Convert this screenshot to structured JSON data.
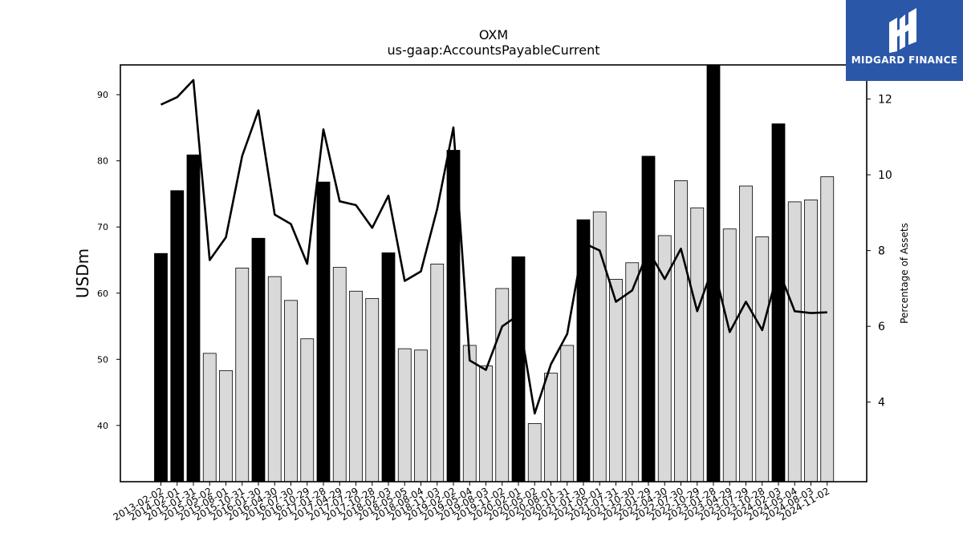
{
  "chart_data": {
    "type": "bar",
    "title": "OXM",
    "subtitle": "us-gaap:AccountsPayableCurrent",
    "ylabel": "USDm",
    "y2label": "Percentage of Assets",
    "ylim": [
      31.5,
      94.5
    ],
    "y2lim": [
      1.9,
      12.9
    ],
    "yticks": [
      40,
      50,
      60,
      70,
      80,
      90
    ],
    "y2ticks": [
      4,
      6,
      8,
      10,
      12
    ],
    "categories": [
      "2013-02-02",
      "2014-02-01",
      "2015-01-31",
      "2015-05-02",
      "2015-08-01",
      "2015-10-31",
      "2016-01-30",
      "2016-04-30",
      "2016-07-30",
      "2016-10-29",
      "2017-01-28",
      "2017-04-29",
      "2017-07-29",
      "2017-10-28",
      "2018-02-03",
      "2018-05-05",
      "2018-08-04",
      "2018-11-03",
      "2019-02-02",
      "2019-05-04",
      "2019-08-03",
      "2019-11-02",
      "2020-02-01",
      "2020-05-02",
      "2020-08-01",
      "2020-10-31",
      "2021-01-30",
      "2021-05-01",
      "2021-07-31",
      "2021-10-30",
      "2022-01-29",
      "2022-04-30",
      "2022-07-30",
      "2022-10-29",
      "2023-01-28",
      "2023-04-29",
      "2023-07-29",
      "2023-10-28",
      "2024-02-03",
      "2024-05-04",
      "2024-08-03",
      "2024-11-02"
    ],
    "series": [
      {
        "kind": "bar",
        "values": [
          66.0,
          75.5,
          80.9,
          50.9,
          48.3,
          63.8,
          68.3,
          62.5,
          58.9,
          53.1,
          76.8,
          63.9,
          60.3,
          59.2,
          66.1,
          51.6,
          51.4,
          64.4,
          81.6,
          52.1,
          49.0,
          60.7,
          65.5,
          40.3,
          47.9,
          52.1,
          71.1,
          72.3,
          62.1,
          64.6,
          80.7,
          68.7,
          77.0,
          72.9,
          94.8,
          69.7,
          76.2,
          68.5,
          85.6,
          73.8,
          74.1,
          77.6
        ],
        "highlight": [
          1,
          1,
          1,
          0,
          0,
          0,
          1,
          0,
          0,
          0,
          1,
          0,
          0,
          0,
          1,
          0,
          0,
          0,
          1,
          0,
          0,
          0,
          1,
          0,
          0,
          0,
          1,
          0,
          0,
          0,
          1,
          0,
          0,
          0,
          1,
          0,
          0,
          0,
          1,
          0,
          0,
          0
        ],
        "colors": {
          "highlight": "#000000",
          "normal": "#d9d9d9",
          "edge": "#000000"
        }
      },
      {
        "kind": "line",
        "axis": "right",
        "color": "#000000",
        "values": [
          11.85,
          12.05,
          12.5,
          7.75,
          8.35,
          10.5,
          11.7,
          8.95,
          8.7,
          7.65,
          11.2,
          9.3,
          9.2,
          8.6,
          9.45,
          7.2,
          7.45,
          9.1,
          11.25,
          5.1,
          4.85,
          6.0,
          6.3,
          3.7,
          5.0,
          5.8,
          8.2,
          8.0,
          6.65,
          6.95,
          8.0,
          7.25,
          8.05,
          6.4,
          7.6,
          5.85,
          6.65,
          5.9,
          7.5,
          6.4,
          6.35,
          6.37
        ]
      }
    ],
    "grid": false
  },
  "logo": {
    "text": "MIDGARD FINANCE",
    "icon": "midgard-logo-icon",
    "background": "#2b57a8"
  }
}
